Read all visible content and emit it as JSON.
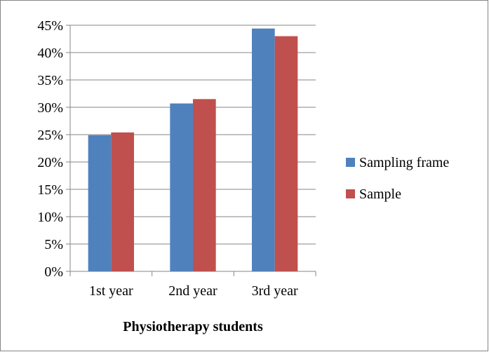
{
  "chart_data": {
    "type": "bar",
    "x_label": "Physiotherapy students",
    "categories": [
      "1st year",
      "2nd year",
      "3rd year"
    ],
    "series": [
      {
        "name": "Sampling frame",
        "color": "#4f81bd",
        "values": [
          24.9,
          30.7,
          44.4
        ]
      },
      {
        "name": "Sample",
        "color": "#c0504d",
        "values": [
          25.4,
          31.5,
          43.0
        ]
      }
    ],
    "ylim": [
      0,
      45
    ],
    "yticks": [
      {
        "value": 0,
        "label": "0%"
      },
      {
        "value": 5,
        "label": "5%"
      },
      {
        "value": 10,
        "label": "10%"
      },
      {
        "value": 15,
        "label": "15%"
      },
      {
        "value": 20,
        "label": "20%"
      },
      {
        "value": 25,
        "label": "25%"
      },
      {
        "value": 30,
        "label": "30%"
      },
      {
        "value": 35,
        "label": "35%"
      },
      {
        "value": 40,
        "label": "40%"
      },
      {
        "value": 45,
        "label": "45%"
      }
    ],
    "grid": true,
    "legend": "right"
  }
}
